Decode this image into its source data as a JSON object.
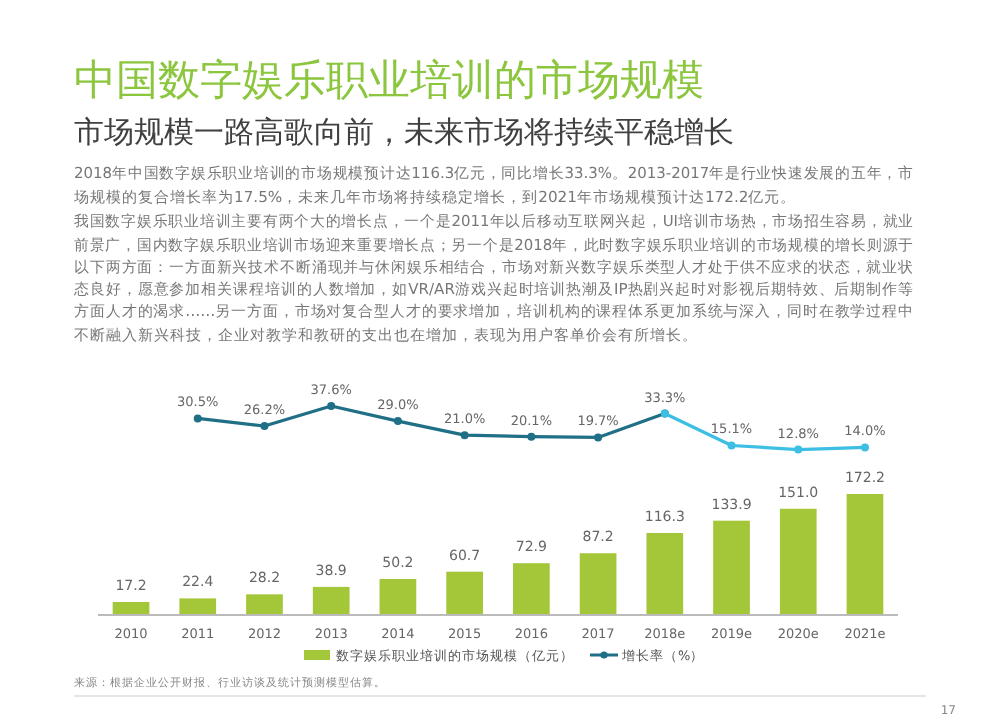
{
  "chart_data": [
    {
      "type": "line",
      "title": "中国数字娱乐职业培训的市场规模",
      "subtitle": "市场规模一路高歌向前，未来市场将持续平稳增长",
      "annotations": [
        "2018年中国数字娱乐职业培训的市场规模预计达116.3亿元，同比增长33.3%。2013-2017年是行业快速发展的五年，市",
        "场规模的复合增长率为17.5%，未来几年市场将持续稳定增长，到2021年市场规模预计达172.2亿元。",
        "我国数字娱乐职业培训主要有两个大的增长点，一个是2011年以后移动互联网兴起，UI培训市场热，市场招生容易，就业",
        "前景广，国内数字娱乐职业培训市场迎来重要增长点；另一个是2018年，此时数字娱乐职业培训的市场规模的增长则源于",
        "以下两方面：一方面新兴技术不断涌现并与休闲娱乐相结合，市场对新兴数字娱乐类型人才处于供不应求的状态，就业状",
        "态良好，愿意参加相关课程培训的人数增加，如VR/AR游戏兴起时培训热潮及IP热剧兴起时对影视后期特效、后期制作等",
        "方面人才的渴求……另一方面，市场对复合型人才的要求增加，培训机构的课程体系更加系统与深入，同时在教学过程中",
        "不断融入新兴科技，企业对教学和教研的支出也在增加，表现为用户客单价会有所增长。",
        "来源：根据企业公开财报、行业访谈及统计预测模型估算。",
        "17"
      ],
      "categories": [
        null,
        null,
        null,
        null,
        null,
        null,
        null,
        null,
        null,
        null,
        null,
        null
      ],
      "series": [
        {
          "name": "增长率（%）",
          "color": "#1f6f86",
          "values": [
            null,
            30.5,
            26.2,
            37.6,
            29.0,
            21.0,
            20.1,
            19.7,
            33.3,
            null,
            null,
            null
          ],
          "value_labels": [
            null,
            "30.5%",
            "26.2%",
            "37.6%",
            "29.0%",
            "21.0%",
            "20.1%",
            "19.7%",
            "33.3%",
            null,
            null,
            null
          ]
        },
        {
          "color": "#3cbfe3",
          "values": [
            null,
            null,
            null,
            null,
            null,
            null,
            null,
            null,
            33.3,
            15.1,
            12.8,
            14.0
          ],
          "value_labels": [
            null,
            null,
            null,
            null,
            null,
            null,
            null,
            null,
            null,
            "15.1%",
            "12.8%",
            "14.0%"
          ]
        }
      ],
      "marker": "circle",
      "legend": "bottom"
    },
    {
      "type": "bar",
      "categories": [
        "2010",
        "2011",
        "2012",
        "2013",
        "2014",
        "2015",
        "2016",
        "2017",
        "2018e",
        "2019e",
        "2020e",
        "2021e"
      ],
      "series": [
        {
          "name": "数字娱乐职业培训的市场规模（亿元）",
          "color": "#a4c639",
          "values": [
            17.2,
            22.4,
            28.2,
            38.9,
            50.2,
            60.7,
            72.9,
            87.2,
            116.3,
            133.9,
            151.0,
            172.2
          ],
          "value_labels": [
            "17.2",
            "22.4",
            "28.2",
            "38.9",
            "50.2",
            "60.7",
            "72.9",
            "87.2",
            "116.3",
            "133.9",
            "151.0",
            "172.2"
          ]
        }
      ],
      "legend": "bottom"
    }
  ]
}
